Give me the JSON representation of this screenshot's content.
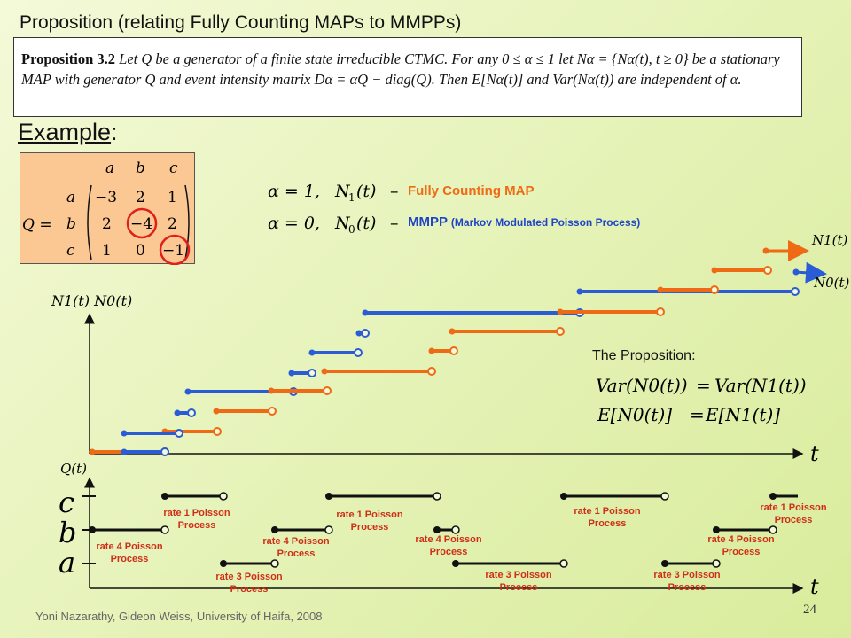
{
  "title": "Proposition (relating Fully Counting MAPs to MMPPs)",
  "proposition": {
    "head": "Proposition 3.2",
    "body": "Let Q be a generator of a finite state irreducible CTMC. For any 0 ≤ α ≤ 1 let Nα = {Nα(t), t ≥ 0} be a stationary MAP with generator Q and event intensity matrix Dα = αQ − diag(Q). Then E[Nα(t)] and Var(Nα(t)) are independent of α."
  },
  "example_label": "Example",
  "matrix": {
    "prefix": "Q =",
    "col_labels": [
      "a",
      "b",
      "c"
    ],
    "row_labels": [
      "a",
      "b",
      "c"
    ],
    "rows": [
      [
        "−3",
        "2",
        "1"
      ],
      [
        "2",
        "−4",
        "2"
      ],
      [
        "1",
        "0",
        "−1"
      ]
    ]
  },
  "cases": {
    "fully_counting": {
      "alpha": "α = 1,",
      "n": "N",
      "sub": "1",
      "t": "(t)",
      "dash": "–",
      "label": "Fully Counting MAP"
    },
    "mmpp": {
      "alpha": "α = 0,",
      "n": "N",
      "sub": "0",
      "t": "(t)",
      "dash": "–",
      "label": "MMPP",
      "label_small": "(Markov Modulated Poisson Process)"
    }
  },
  "axis": {
    "y_label": "N1(t)  N0(t)",
    "t_label": "t",
    "legend_n1": "N1(t)",
    "legend_n0": "N0(t)",
    "q_label": "Q(t)",
    "state_c": "c",
    "state_b": "b",
    "state_a": "a"
  },
  "proposition_label": "The Proposition:",
  "equations": {
    "var_left": "Var(N0(t))",
    "var_eq": "=",
    "var_right": "Var(N1(t))",
    "e_left": "E[N0(t)]",
    "e_eq": "=",
    "e_right": "E[N1(t)]"
  },
  "rates": [
    "rate 4 Poisson Process",
    "rate 1 Poisson Process",
    "rate 3 Poisson Process",
    "rate 4 Poisson Process",
    "rate 1 Poisson Process",
    "rate 4 Poisson Process",
    "rate 3 Poisson Process",
    "rate 1 Poisson Process",
    "rate 3 Poisson Process",
    "rate 4 Poisson Process",
    "rate 1 Poisson Process"
  ],
  "footer": "Yoni Nazarathy, Gideon Weiss, University of Haifa, 2008",
  "page_number": "24",
  "colors": {
    "orange": "#ef6a14",
    "blue": "#2a5cd6",
    "matrix_bg": "#fbc893",
    "circle": "#e0201a"
  }
}
